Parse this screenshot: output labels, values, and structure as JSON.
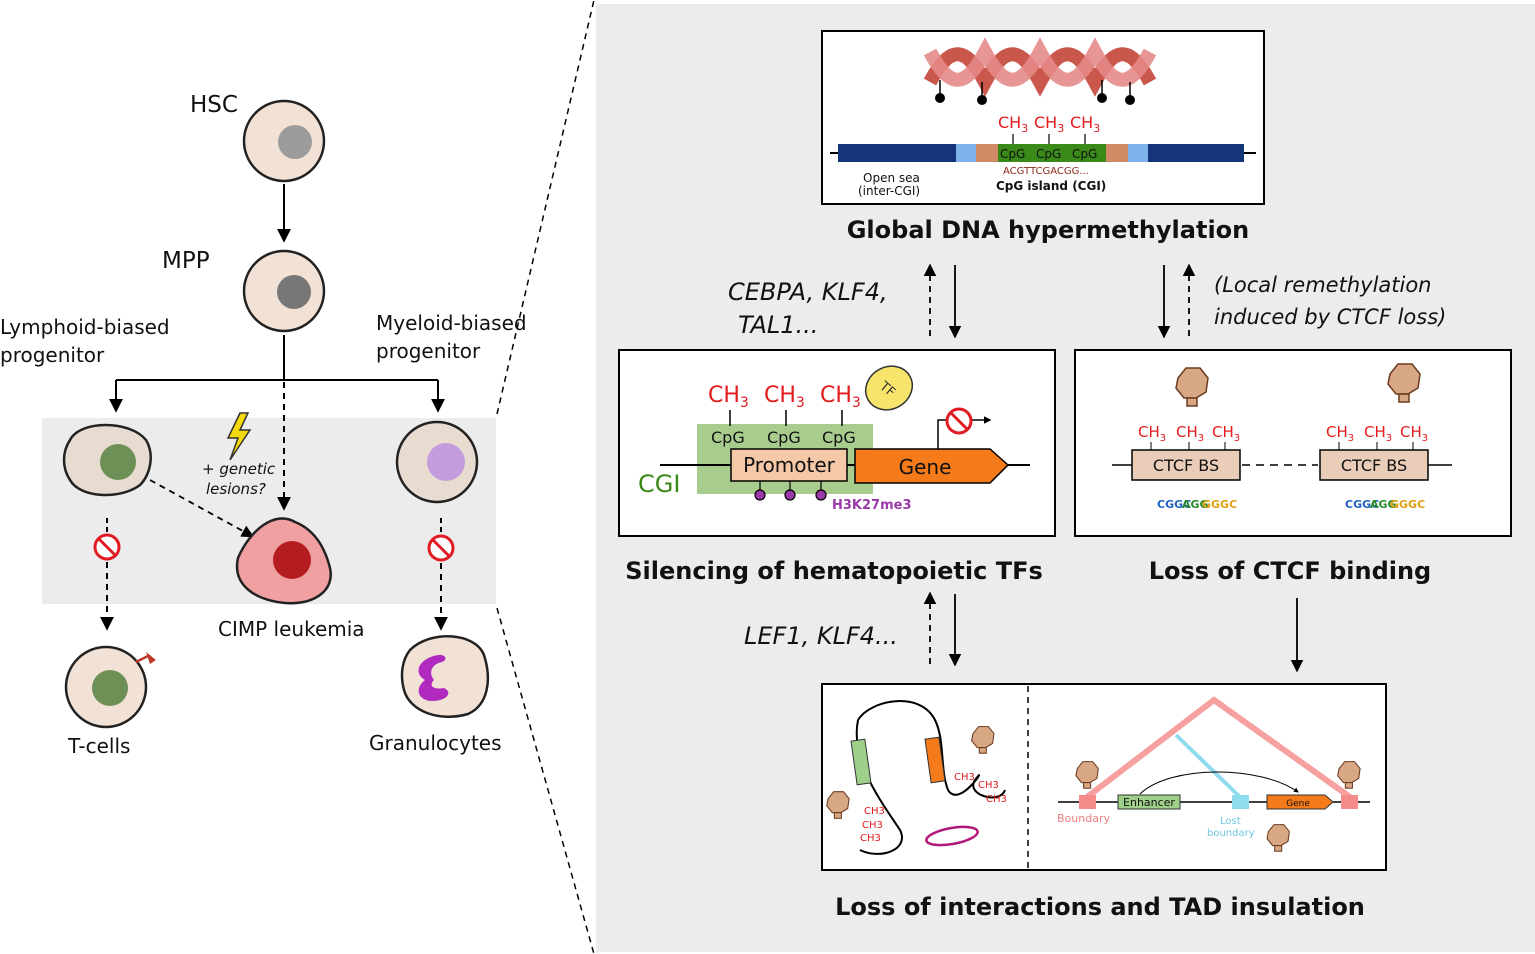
{
  "left": {
    "hsc": "HSC",
    "mpp": "MPP",
    "lymphoid_1": "Lymphoid-biased",
    "lymphoid_2": "progenitor",
    "myeloid_1": "Myeloid-biased",
    "myeloid_2": "progenitor",
    "genetic_1": "+ genetic",
    "genetic_2": "lesions?",
    "cimp": "CIMP leukemia",
    "tcells": "T-cells",
    "granulocytes": "Granulocytes"
  },
  "top_panel": {
    "ch3": "CH",
    "sub3": "3",
    "cpg": "CpG",
    "sequence": "ACGTTCGACGG...",
    "open_sea_1": "Open sea",
    "open_sea_2": "(inter-CGI)",
    "cgi_label": "CpG island (CGI)",
    "title": "Global DNA hypermethylation"
  },
  "mid_left": {
    "genes_1": "CEBPA, KLF4,",
    "genes_2": "TAL1...",
    "tf": "TF",
    "cgi": "CGI",
    "promoter": "Promoter",
    "gene": "Gene",
    "h3k": "H3K27me3",
    "title": "Silencing of hematopoietic TFs"
  },
  "mid_right": {
    "note_1": "(Local remethylation",
    "note_2": "induced by CTCF loss)",
    "ctcf": "CTCF",
    "ctcf_bs": "CTCF BS",
    "title": "Loss of CTCF binding"
  },
  "bottom": {
    "genes": "LEF1, KLF4...",
    "enhancer": "Enhancer",
    "gene": "Gene",
    "boundary": "Boundary",
    "lost_1": "Lost",
    "lost_2": "boundary",
    "ctcf": "CTCF",
    "ch3": "CH3",
    "title": "Loss of interactions and TAD insulation"
  },
  "colors": {
    "bg_panel": "#ececec",
    "cell": "#f2e2d6",
    "methyl": "#e41a1c",
    "cpg_green": "#3a8a1a",
    "promoter": "#f5c8a8",
    "gene_orange": "#f57a1a",
    "ctcf_tan": "#d4a27c",
    "boundary_pink": "#f6a0a0",
    "lost_cyan": "#8fdcef",
    "purple": "#9a3aa8"
  }
}
